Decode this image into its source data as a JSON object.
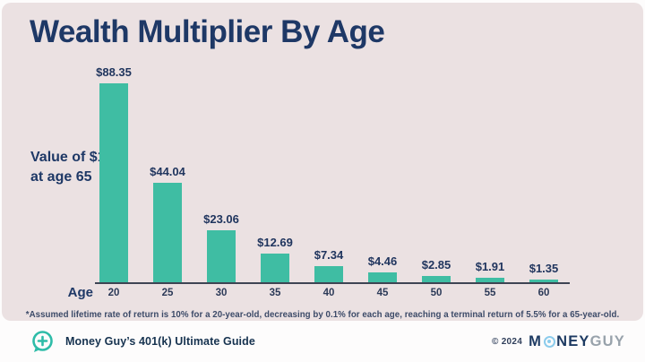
{
  "title": "Wealth Multiplier By Age",
  "y_axis_note": {
    "line1": "Value of $1",
    "line2": "at age 65"
  },
  "x_axis_label": "Age",
  "footnote": "*Assumed lifetime rate of return is 10% for a 20-year-old, decreasing by 0.1% for each age, reaching a terminal return of 5.5% for a 65-year-old.",
  "footer": {
    "left_text": "Money Guy’s 401(k) Ultimate Guide",
    "copyright": "© 2024",
    "logo": {
      "part1": "M",
      "part2": "NEY",
      "part3": "GUY"
    }
  },
  "colors": {
    "card_background": "#ebe1e2",
    "bar": "#3fbda3",
    "navy_text": "#1e3866",
    "axis": "#3e4453",
    "footer_background": "#fdfcfc",
    "logo_gray": "#98a2ab",
    "logo_light_blue": "#8cccec",
    "icon_teal": "#2ebca8"
  },
  "chart_data": {
    "type": "bar",
    "categories": [
      "20",
      "25",
      "30",
      "35",
      "40",
      "45",
      "50",
      "55",
      "60"
    ],
    "values": [
      88.35,
      44.04,
      23.06,
      12.69,
      7.34,
      4.46,
      2.85,
      1.91,
      1.35
    ],
    "value_labels": [
      "$88.35",
      "$44.04",
      "$23.06",
      "$12.69",
      "$7.34",
      "$4.46",
      "$2.85",
      "$1.91",
      "$1.35"
    ],
    "title": "Wealth Multiplier By Age",
    "xlabel": "Age",
    "ylabel": "Value of $1 at age 65",
    "ylim": [
      0,
      95
    ],
    "grid": false,
    "legend": false,
    "bar_color": "#3fbda3"
  }
}
